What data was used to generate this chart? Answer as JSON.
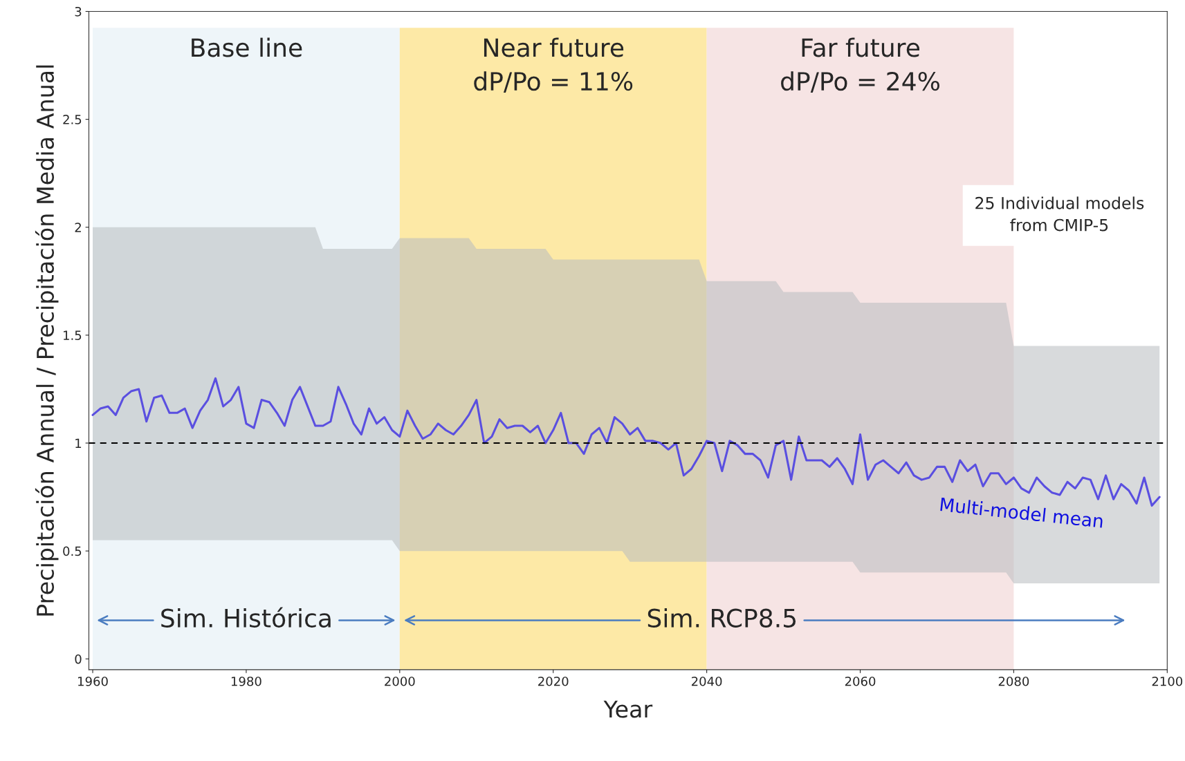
{
  "chart_data": {
    "type": "line",
    "xlabel": "Year",
    "ylabel": "Precipitación Annual / Precipitación Media Anual",
    "x": [
      1960,
      1961,
      1962,
      1963,
      1964,
      1965,
      1966,
      1967,
      1968,
      1969,
      1970,
      1971,
      1972,
      1973,
      1974,
      1975,
      1976,
      1977,
      1978,
      1979,
      1980,
      1981,
      1982,
      1983,
      1984,
      1985,
      1986,
      1987,
      1988,
      1989,
      1990,
      1991,
      1992,
      1993,
      1994,
      1995,
      1996,
      1997,
      1998,
      1999,
      2000,
      2001,
      2002,
      2003,
      2004,
      2005,
      2006,
      2007,
      2008,
      2009,
      2010,
      2011,
      2012,
      2013,
      2014,
      2015,
      2016,
      2017,
      2018,
      2019,
      2020,
      2021,
      2022,
      2023,
      2024,
      2025,
      2026,
      2027,
      2028,
      2029,
      2030,
      2031,
      2032,
      2033,
      2034,
      2035,
      2036,
      2037,
      2038,
      2039,
      2040,
      2041,
      2042,
      2043,
      2044,
      2045,
      2046,
      2047,
      2048,
      2049,
      2050,
      2051,
      2052,
      2053,
      2054,
      2055,
      2056,
      2057,
      2058,
      2059,
      2060,
      2061,
      2062,
      2063,
      2064,
      2065,
      2066,
      2067,
      2068,
      2069,
      2070,
      2071,
      2072,
      2073,
      2074,
      2075,
      2076,
      2077,
      2078,
      2079,
      2080,
      2081,
      2082,
      2083,
      2084,
      2085,
      2086,
      2087,
      2088,
      2089,
      2090,
      2091,
      2092,
      2093,
      2094,
      2095,
      2096,
      2097,
      2098,
      2099
    ],
    "series": [
      {
        "name": "Multi-model mean",
        "color": "#5a4fe0",
        "values": [
          1.13,
          1.16,
          1.17,
          1.13,
          1.21,
          1.24,
          1.25,
          1.1,
          1.21,
          1.22,
          1.14,
          1.14,
          1.16,
          1.07,
          1.15,
          1.2,
          1.3,
          1.17,
          1.2,
          1.26,
          1.09,
          1.07,
          1.2,
          1.19,
          1.14,
          1.08,
          1.2,
          1.26,
          1.17,
          1.08,
          1.08,
          1.1,
          1.26,
          1.18,
          1.09,
          1.04,
          1.16,
          1.09,
          1.12,
          1.06,
          1.03,
          1.15,
          1.08,
          1.02,
          1.04,
          1.09,
          1.06,
          1.04,
          1.08,
          1.13,
          1.2,
          1.0,
          1.03,
          1.11,
          1.07,
          1.08,
          1.08,
          1.05,
          1.08,
          1.0,
          1.06,
          1.14,
          1.0,
          1.0,
          0.95,
          1.04,
          1.07,
          1.0,
          1.12,
          1.09,
          1.04,
          1.07,
          1.01,
          1.01,
          1.0,
          0.97,
          1.0,
          0.85,
          0.88,
          0.94,
          1.01,
          1.0,
          0.87,
          1.01,
          0.99,
          0.95,
          0.95,
          0.92,
          0.84,
          0.99,
          1.01,
          0.83,
          1.03,
          0.92,
          0.92,
          0.92,
          0.89,
          0.93,
          0.88,
          0.81,
          1.04,
          0.83,
          0.9,
          0.92,
          0.89,
          0.86,
          0.91,
          0.85,
          0.83,
          0.84,
          0.89,
          0.89,
          0.82,
          0.92,
          0.87,
          0.9,
          0.8,
          0.86,
          0.86,
          0.81,
          0.84,
          0.79,
          0.77,
          0.84,
          0.8,
          0.77,
          0.76,
          0.82,
          0.79,
          0.84,
          0.83,
          0.74,
          0.85,
          0.74,
          0.81,
          0.78,
          0.72,
          0.84,
          0.71,
          0.75
        ],
        "lower": [
          0.55,
          0.55,
          0.55,
          0.55,
          0.55,
          0.55,
          0.55,
          0.55,
          0.55,
          0.55,
          0.55,
          0.55,
          0.55,
          0.55,
          0.55,
          0.55,
          0.55,
          0.55,
          0.55,
          0.55,
          0.55,
          0.55,
          0.55,
          0.55,
          0.55,
          0.55,
          0.55,
          0.55,
          0.55,
          0.55,
          0.55,
          0.55,
          0.55,
          0.55,
          0.55,
          0.55,
          0.55,
          0.55,
          0.55,
          0.55,
          0.5,
          0.5,
          0.5,
          0.5,
          0.5,
          0.5,
          0.5,
          0.5,
          0.5,
          0.5,
          0.5,
          0.5,
          0.5,
          0.5,
          0.5,
          0.5,
          0.5,
          0.5,
          0.5,
          0.5,
          0.5,
          0.5,
          0.5,
          0.5,
          0.5,
          0.5,
          0.5,
          0.5,
          0.5,
          0.5,
          0.45,
          0.45,
          0.45,
          0.45,
          0.45,
          0.45,
          0.45,
          0.45,
          0.45,
          0.45,
          0.45,
          0.45,
          0.45,
          0.45,
          0.45,
          0.45,
          0.45,
          0.45,
          0.45,
          0.45,
          0.45,
          0.45,
          0.45,
          0.45,
          0.45,
          0.45,
          0.45,
          0.45,
          0.45,
          0.45,
          0.4,
          0.4,
          0.4,
          0.4,
          0.4,
          0.4,
          0.4,
          0.4,
          0.4,
          0.4,
          0.4,
          0.4,
          0.4,
          0.4,
          0.4,
          0.4,
          0.4,
          0.4,
          0.4,
          0.4,
          0.35,
          0.35,
          0.35,
          0.35,
          0.35,
          0.35,
          0.35,
          0.35,
          0.35,
          0.35,
          0.35,
          0.35,
          0.35,
          0.35,
          0.35,
          0.35,
          0.35,
          0.35,
          0.35,
          0.35
        ],
        "upper": [
          2.0,
          2.0,
          2.0,
          2.0,
          2.0,
          2.0,
          2.0,
          2.0,
          2.0,
          2.0,
          2.0,
          2.0,
          2.0,
          2.0,
          2.0,
          2.0,
          2.0,
          2.0,
          2.0,
          2.0,
          2.0,
          2.0,
          2.0,
          2.0,
          2.0,
          2.0,
          2.0,
          2.0,
          2.0,
          2.0,
          1.9,
          1.9,
          1.9,
          1.9,
          1.9,
          1.9,
          1.9,
          1.9,
          1.9,
          1.9,
          1.95,
          1.95,
          1.95,
          1.95,
          1.95,
          1.95,
          1.95,
          1.95,
          1.95,
          1.95,
          1.9,
          1.9,
          1.9,
          1.9,
          1.9,
          1.9,
          1.9,
          1.9,
          1.9,
          1.9,
          1.85,
          1.85,
          1.85,
          1.85,
          1.85,
          1.85,
          1.85,
          1.85,
          1.85,
          1.85,
          1.85,
          1.85,
          1.85,
          1.85,
          1.85,
          1.85,
          1.85,
          1.85,
          1.85,
          1.85,
          1.75,
          1.75,
          1.75,
          1.75,
          1.75,
          1.75,
          1.75,
          1.75,
          1.75,
          1.75,
          1.7,
          1.7,
          1.7,
          1.7,
          1.7,
          1.7,
          1.7,
          1.7,
          1.7,
          1.7,
          1.65,
          1.65,
          1.65,
          1.65,
          1.65,
          1.65,
          1.65,
          1.65,
          1.65,
          1.65,
          1.65,
          1.65,
          1.65,
          1.65,
          1.65,
          1.65,
          1.65,
          1.65,
          1.65,
          1.65,
          1.45,
          1.45,
          1.45,
          1.45,
          1.45,
          1.45,
          1.45,
          1.45,
          1.45,
          1.45,
          1.45,
          1.45,
          1.45,
          1.45,
          1.45,
          1.45,
          1.45,
          1.45,
          1.45,
          1.45
        ]
      }
    ],
    "xlim": [
      1959.5,
      2100
    ],
    "ylim": [
      -0.05,
      3
    ],
    "xticks": [
      1960,
      1980,
      2000,
      2020,
      2040,
      2060,
      2080,
      2100
    ],
    "yticks": [
      0,
      {
        "value": 0.5,
        "label": "0.5"
      },
      1,
      {
        "value": 1.5,
        "label": "1.5"
      },
      2,
      {
        "value": 2.5,
        "label": "2.5"
      },
      3
    ],
    "bands": [
      {
        "axis": "x",
        "from": 1960,
        "to": 2000,
        "label": "Base line",
        "color": "#eef5f9"
      },
      {
        "axis": "x",
        "from": 2000,
        "to": 2040,
        "label": "Near future\ndP/Po = 11%",
        "color": "#fde9a6"
      },
      {
        "axis": "x",
        "from": 2040,
        "to": 2080,
        "label": "Far future\ndP/Po = 24%",
        "color": "#f6e4e4"
      }
    ],
    "ref_lines": [
      {
        "axis": "y",
        "value": 1,
        "color": "#000000",
        "line_style": "dashed"
      }
    ],
    "annotations": [
      "Sim. Histórica",
      "Sim. RCP8.5",
      "25 Individual models\nfrom CMIP-5"
    ],
    "grid": false,
    "legend": false,
    "marker": "none",
    "line_style": "solid"
  }
}
